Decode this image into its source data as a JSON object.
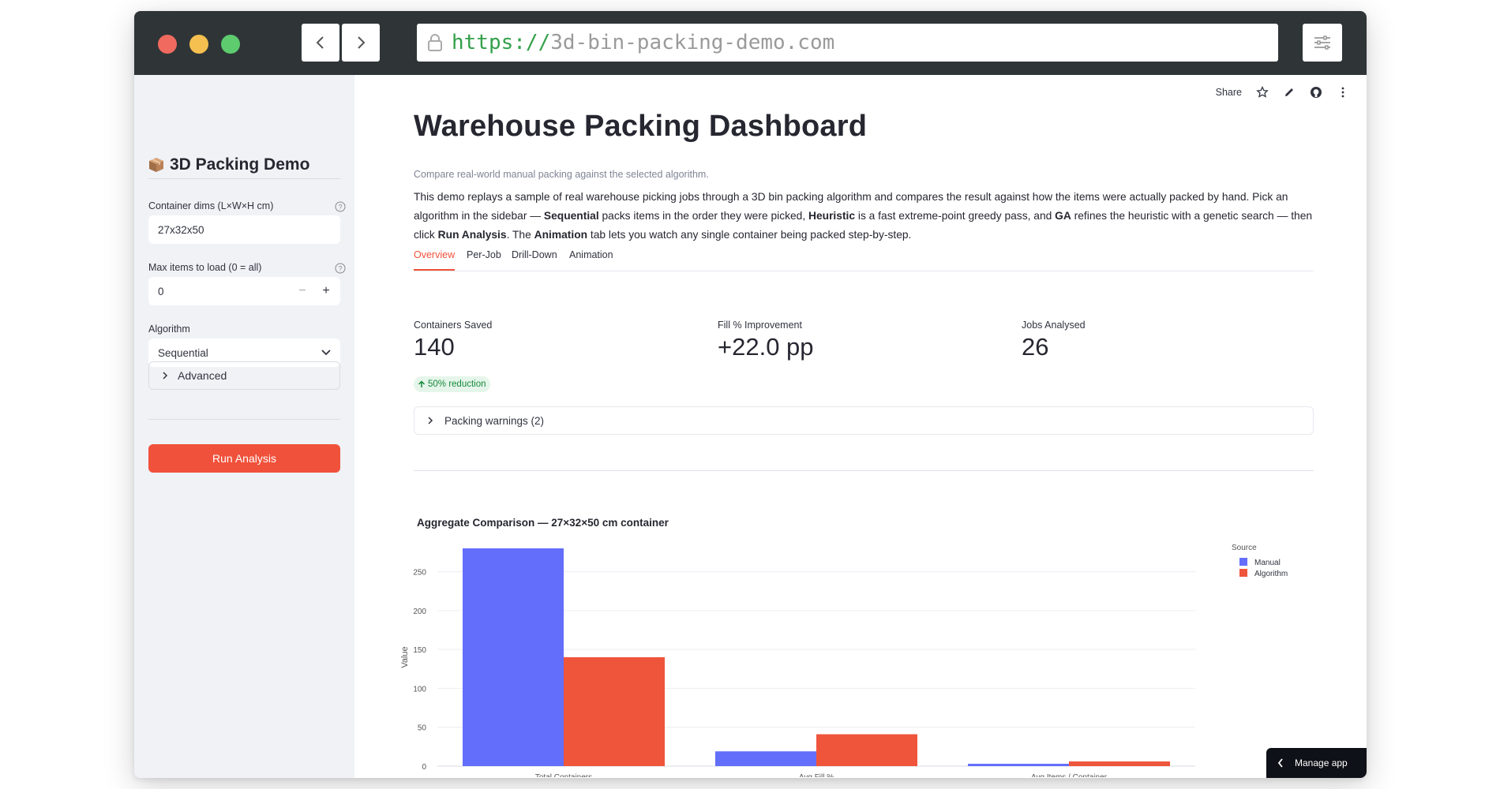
{
  "browser": {
    "url_scheme": "https://",
    "url_host": "3d-bin-packing-demo.com"
  },
  "sidebar": {
    "title": "3D Packing Demo",
    "container_label": "Container dims (L×W×H cm)",
    "container_value": "27x32x50",
    "max_items_label": "Max items to load (0 = all)",
    "max_items_value": "0",
    "algorithm_label": "Algorithm",
    "algorithm_value": "Sequential",
    "advanced_label": "Advanced",
    "run_button": "Run Analysis"
  },
  "topbar": {
    "share": "Share"
  },
  "main": {
    "title": "Warehouse Packing Dashboard",
    "caption": "Compare real-world manual packing against the selected algorithm.",
    "desc": {
      "p1": "This demo replays a sample of real warehouse picking jobs through a 3D bin packing algorithm and compares the result against how the items were actually packed by hand. Pick an algorithm in the sidebar — ",
      "b1": "Sequential",
      "p2": " packs items in the order they were picked, ",
      "b2": "Heuristic",
      "p3": " is a fast extreme-point greedy pass, and ",
      "b3": "GA",
      "p4": " refines the heuristic with a genetic search — then click ",
      "b4": "Run Analysis",
      "p5": ". The ",
      "b5": "Animation",
      "p6": " tab lets you watch any single container being packed step-by-step."
    },
    "tabs": [
      "Overview",
      "Per-Job",
      "Drill-Down",
      "Animation"
    ],
    "metrics": [
      {
        "label": "Containers Saved",
        "value": "140",
        "delta": "50% reduction"
      },
      {
        "label": "Fill % Improvement",
        "value": "+22.0 pp"
      },
      {
        "label": "Jobs Analysed",
        "value": "26"
      }
    ],
    "warnings": "Packing warnings (2)",
    "manage_app": "Manage app"
  },
  "colors": {
    "accent": "#f0513a",
    "manual": "#636efa",
    "algorithm": "#ef553b"
  },
  "chart_data": {
    "type": "bar",
    "title": "Aggregate Comparison — 27×32×50 cm container",
    "categories": [
      "Total Containers",
      "Avg Fill %",
      "Avg Items / Container"
    ],
    "series": [
      {
        "name": "Manual",
        "values": [
          280,
          19,
          3
        ]
      },
      {
        "name": "Algorithm",
        "values": [
          140,
          41,
          6
        ]
      }
    ],
    "ylabel": "Value",
    "xlabel": "",
    "ylim": [
      0,
      280
    ],
    "yticks": [
      0,
      50,
      100,
      150,
      200,
      250
    ],
    "legend_title": "Source",
    "legend_position": "top-right",
    "grid": true
  }
}
